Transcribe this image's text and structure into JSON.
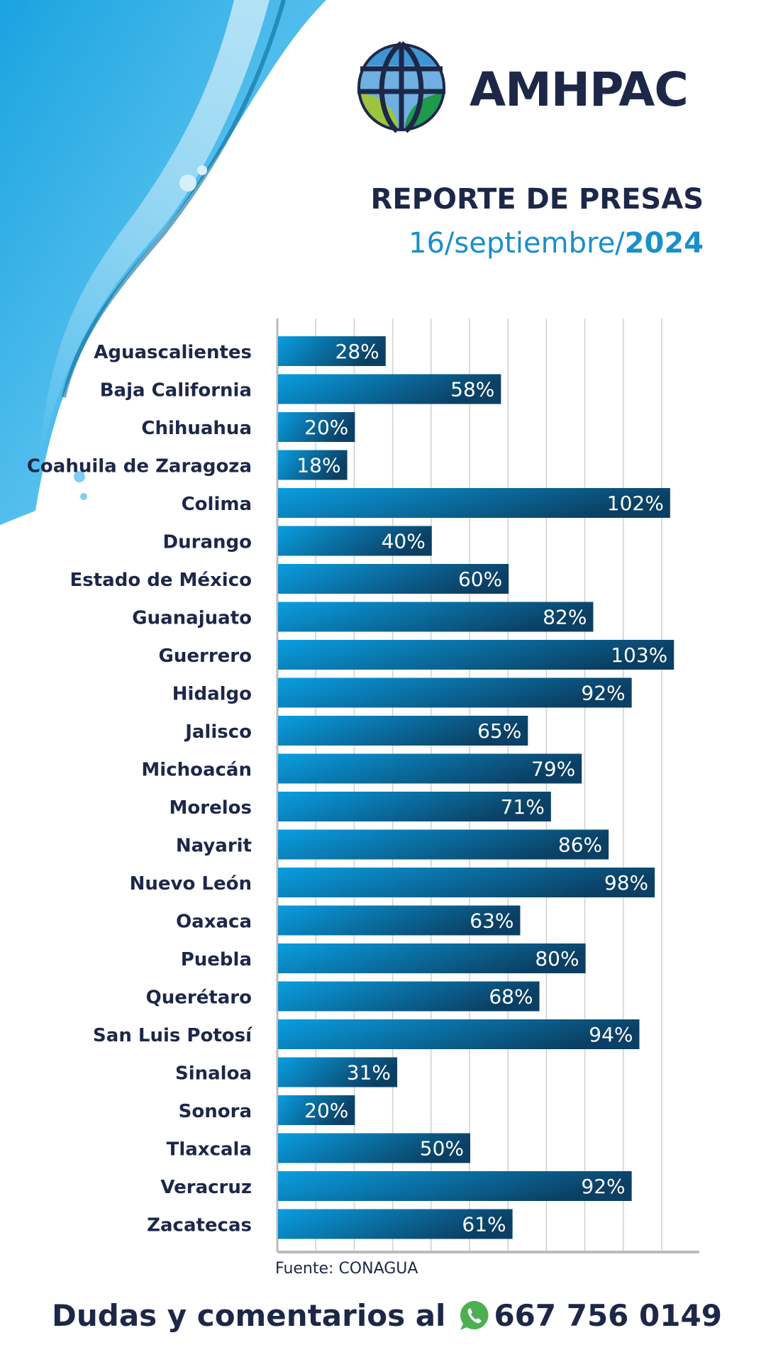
{
  "header": {
    "brand": "AMHPAC",
    "title": "REPORTE DE PRESAS",
    "date_prefix": "16/septiembre/",
    "date_year": "2024"
  },
  "colors": {
    "bar_start": "#0a9ee0",
    "bar_end": "#0b3f63",
    "text": "#1d2748",
    "accent": "#1a8fc9",
    "whatsapp": "#4caf50"
  },
  "chart_data": {
    "type": "bar",
    "orientation": "horizontal",
    "categories": [
      "Aguascalientes",
      "Baja California",
      "Chihuahua",
      "Coahuila de Zaragoza",
      "Colima",
      "Durango",
      "Estado de México",
      "Guanajuato",
      "Guerrero",
      "Hidalgo",
      "Jalisco",
      "Michoacán",
      "Morelos",
      "Nayarit",
      "Nuevo León",
      "Oaxaca",
      "Puebla",
      "Querétaro",
      "San Luis Potosí",
      "Sinaloa",
      "Sonora",
      "Tlaxcala",
      "Veracruz",
      "Zacatecas"
    ],
    "values": [
      28,
      58,
      20,
      18,
      102,
      40,
      60,
      82,
      103,
      92,
      65,
      79,
      71,
      86,
      98,
      63,
      80,
      68,
      94,
      31,
      20,
      50,
      92,
      61
    ],
    "value_labels": [
      "28%",
      "58%",
      "20%",
      "18%",
      "102%",
      "40%",
      "60%",
      "82%",
      "103%",
      "92%",
      "65%",
      "79%",
      "71%",
      "86%",
      "98%",
      "63%",
      "80%",
      "68%",
      "94%",
      "31%",
      "20%",
      "50%",
      "92%",
      "61%"
    ],
    "xlim": [
      0,
      110
    ],
    "grid": true,
    "title": "",
    "xlabel": "",
    "ylabel": ""
  },
  "source": "Fuente: CONAGUA",
  "footer": {
    "text": "Dudas y comentarios al",
    "phone": "667 756 0149",
    "icon": "whatsapp-icon"
  }
}
